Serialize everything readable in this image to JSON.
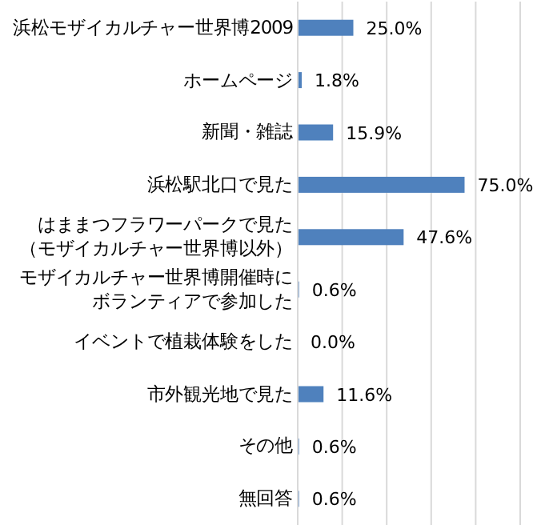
{
  "chart_data": {
    "type": "bar",
    "orientation": "horizontal",
    "categories": [
      "浜松モザイカルチャー世界博2009",
      "ホームページ",
      "新聞・雑誌",
      "浜松駅北口で見た",
      "はままつフラワーパークで見た（モザイカルチャー世界博以外）",
      "モザイカルチャー世界博開催時にボランティアで参加した",
      "イベントで植栽体験をした",
      "市外観光地で見た",
      "その他",
      "無回答"
    ],
    "values": [
      25.0,
      1.8,
      15.9,
      75.0,
      47.6,
      0.6,
      0.0,
      11.6,
      0.6,
      0.6
    ],
    "value_labels": [
      "25.0%",
      "1.8%",
      "15.9%",
      "75.0%",
      "47.6%",
      "0.6%",
      "0.0%",
      "11.6%",
      "0.6%",
      "0.6%"
    ],
    "color": "#4f81bd",
    "xlim": [
      0,
      100
    ],
    "xticks": [
      {
        "value": 0,
        "label": null
      },
      {
        "value": 20,
        "label": null
      },
      {
        "value": 40,
        "label": null
      },
      {
        "value": 60,
        "label": null
      },
      {
        "value": 80,
        "label": null
      },
      {
        "value": 100,
        "label": null
      }
    ],
    "grid": "x",
    "tick_labels": "y"
  }
}
